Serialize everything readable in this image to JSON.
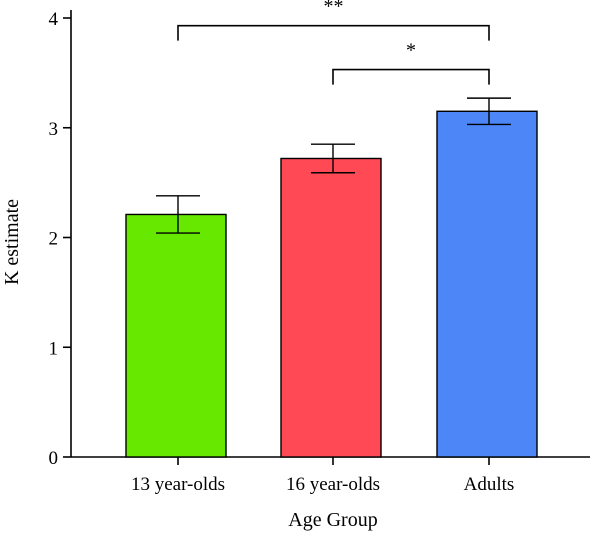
{
  "chart_data": {
    "type": "bar",
    "title": "",
    "xlabel": "Age Group",
    "ylabel": "K estimate",
    "ylim": [
      0,
      4
    ],
    "yticks": [
      0,
      1,
      2,
      3,
      4
    ],
    "categories": [
      "13 year-olds",
      "16 year-olds",
      "Adults"
    ],
    "values": [
      2.21,
      2.72,
      3.15
    ],
    "error_low": [
      2.04,
      2.59,
      3.03
    ],
    "error_high": [
      2.38,
      2.85,
      3.27
    ],
    "colors": [
      "#66e800",
      "#ff4a55",
      "#4d86f7"
    ],
    "grid": false,
    "annotations": [
      {
        "from": "13 year-olds",
        "to": "Adults",
        "label": "**",
        "level": 3.93
      },
      {
        "from": "16 year-olds",
        "to": "Adults",
        "label": "*",
        "level": 3.53
      }
    ]
  }
}
